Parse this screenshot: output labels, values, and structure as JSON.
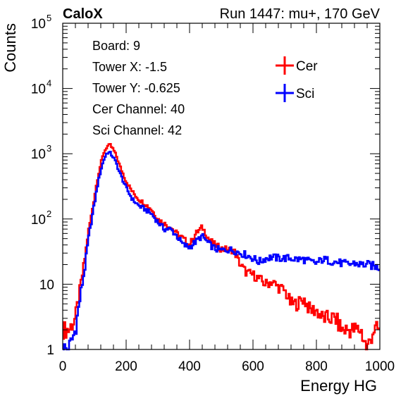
{
  "header": {
    "left_title": "CaloX",
    "right_title": "Run 1447: mu+, 170 GeV"
  },
  "info_lines": [
    "Board: 9",
    "Tower X: -1.5",
    "Tower Y: -0.625",
    "Cer Channel: 40",
    "Sci Channel: 42"
  ],
  "chart_data": {
    "type": "line",
    "title": "",
    "xlabel": "Energy HG",
    "ylabel": "Counts",
    "xlim": [
      0,
      1000
    ],
    "ylim": [
      1,
      100000
    ],
    "yscale": "log",
    "grid": false,
    "legend_position": "top-right",
    "x_ticks": [
      "0",
      "200",
      "400",
      "600",
      "800",
      "1000"
    ],
    "y_ticks": [
      {
        "value": 1,
        "label": "1"
      },
      {
        "value": 10,
        "label": "10"
      },
      {
        "value": 100,
        "base": "10",
        "exp": "2"
      },
      {
        "value": 1000,
        "base": "10",
        "exp": "3"
      },
      {
        "value": 10000,
        "base": "10",
        "exp": "4"
      },
      {
        "value": 100000,
        "base": "10",
        "exp": "5"
      }
    ],
    "x": [
      0,
      20,
      40,
      60,
      70,
      80,
      90,
      100,
      110,
      120,
      130,
      140,
      150,
      160,
      170,
      180,
      200,
      220,
      240,
      260,
      280,
      300,
      320,
      340,
      360,
      380,
      400,
      420,
      440,
      460,
      480,
      500,
      520,
      540,
      560,
      580,
      600,
      620,
      640,
      660,
      680,
      700,
      720,
      740,
      760,
      780,
      800,
      820,
      840,
      860,
      880,
      900,
      920,
      940,
      960,
      980,
      1000
    ],
    "series": [
      {
        "name": "Cer",
        "color": "#ff0000",
        "values": [
          2,
          2,
          3,
          12,
          25,
          60,
          110,
          220,
          420,
          700,
          1050,
          1300,
          1350,
          1150,
          900,
          650,
          380,
          260,
          200,
          170,
          140,
          100,
          85,
          75,
          60,
          50,
          40,
          60,
          75,
          50,
          40,
          35,
          34,
          33,
          20,
          15,
          14,
          12,
          10,
          11,
          9,
          8,
          5,
          5,
          6,
          4,
          4,
          3,
          3,
          3,
          2,
          2,
          2,
          2,
          1,
          2,
          2
        ]
      },
      {
        "name": "Sci",
        "color": "#0000ff",
        "values": [
          1,
          1,
          2,
          9,
          18,
          45,
          90,
          170,
          330,
          560,
          820,
          1050,
          1020,
          880,
          690,
          510,
          300,
          200,
          160,
          140,
          120,
          90,
          70,
          70,
          55,
          40,
          37,
          45,
          55,
          42,
          35,
          33,
          34,
          33,
          30,
          28,
          25,
          22,
          25,
          26,
          25,
          25,
          25,
          24,
          24,
          22,
          21,
          24,
          23,
          22,
          21,
          20,
          21,
          20,
          20,
          19,
          18
        ]
      }
    ]
  }
}
